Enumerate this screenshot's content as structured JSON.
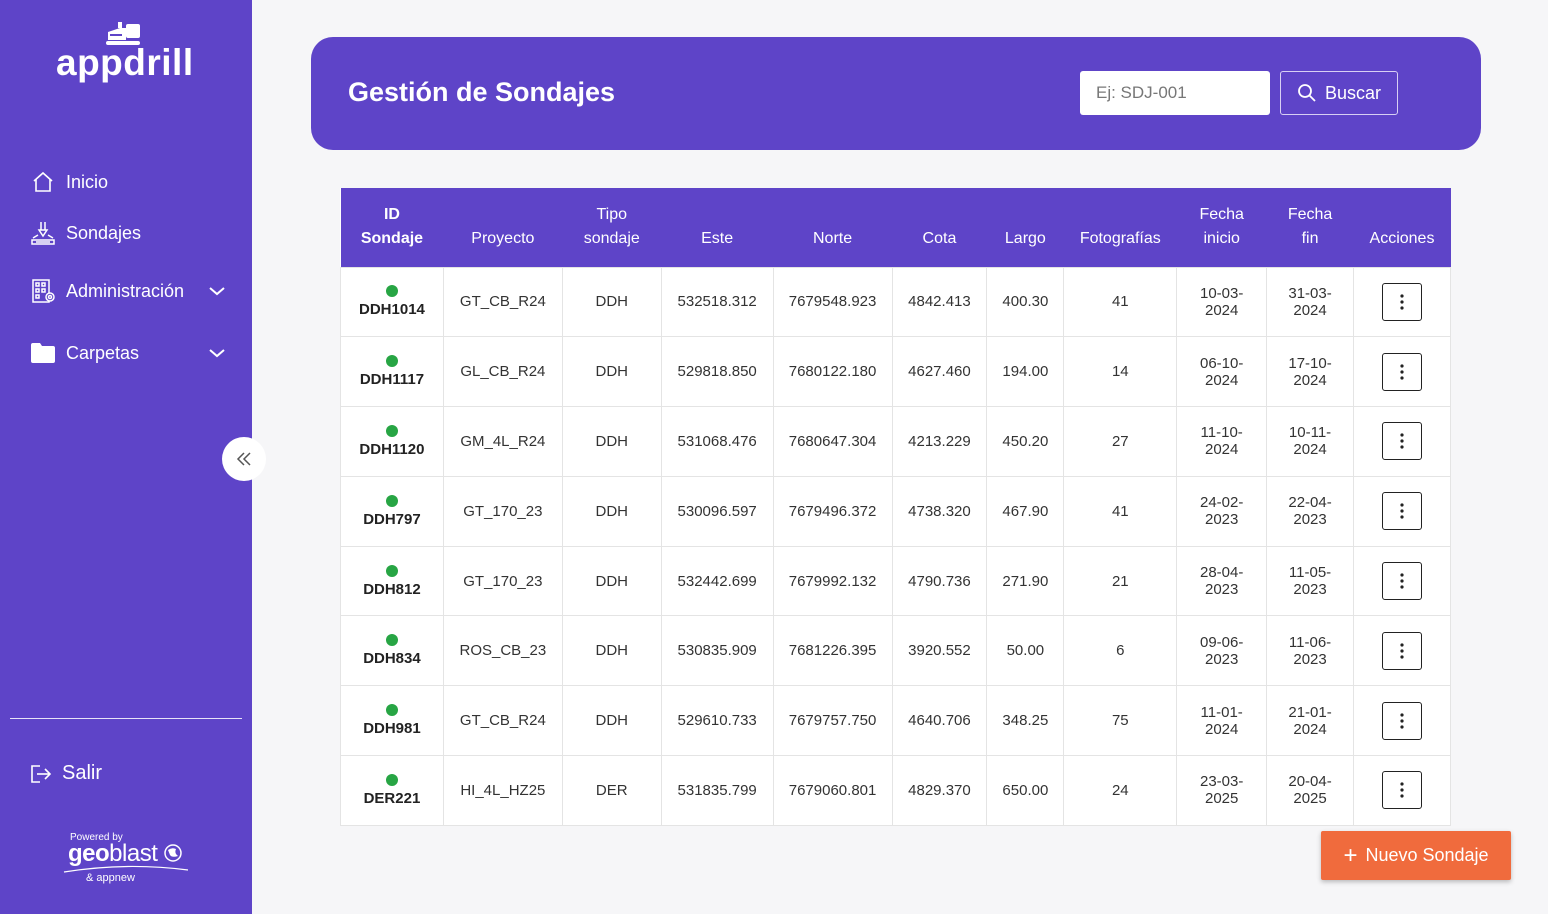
{
  "app": {
    "logo_text": "appdrill"
  },
  "sidebar": {
    "items": [
      {
        "label": "Inicio",
        "icon": "home-icon"
      },
      {
        "label": "Sondajes",
        "icon": "drill-icon"
      },
      {
        "label": "Administración",
        "icon": "building-icon",
        "expandable": true
      },
      {
        "label": "Carpetas",
        "icon": "folder-icon",
        "expandable": true
      }
    ],
    "logout_label": "Salir",
    "powered_by": "Powered by",
    "powered_brand_bold": "geo",
    "powered_brand": "blast",
    "partner": "& appnew"
  },
  "header": {
    "title": "Gestión de Sondajes",
    "search_placeholder": "Ej: SDJ-001",
    "search_label": "Buscar"
  },
  "table": {
    "columns": [
      {
        "line1": "ID",
        "line2": "Sondaje"
      },
      {
        "line1": "",
        "line2": "Proyecto"
      },
      {
        "line1": "Tipo",
        "line2": "sondaje"
      },
      {
        "line1": "",
        "line2": "Este"
      },
      {
        "line1": "",
        "line2": "Norte"
      },
      {
        "line1": "",
        "line2": "Cota"
      },
      {
        "line1": "",
        "line2": "Largo"
      },
      {
        "line1": "",
        "line2": "Fotografías"
      },
      {
        "line1": "Fecha",
        "line2": "inicio"
      },
      {
        "line1": "Fecha",
        "line2": "fin"
      },
      {
        "line1": "",
        "line2": "Acciones"
      }
    ],
    "rows": [
      {
        "id": "DDH1014",
        "proyecto": "GT_CB_R24",
        "tipo": "DDH",
        "este": "532518.312",
        "norte": "7679548.923",
        "cota": "4842.413",
        "largo": "400.30",
        "fotos": "41",
        "inicio_a": "10-03-",
        "inicio_b": "2024",
        "fin_a": "31-03-",
        "fin_b": "2024",
        "status_color": "#27a544"
      },
      {
        "id": "DDH1117",
        "proyecto": "GL_CB_R24",
        "tipo": "DDH",
        "este": "529818.850",
        "norte": "7680122.180",
        "cota": "4627.460",
        "largo": "194.00",
        "fotos": "14",
        "inicio_a": "06-10-",
        "inicio_b": "2024",
        "fin_a": "17-10-",
        "fin_b": "2024",
        "status_color": "#27a544"
      },
      {
        "id": "DDH1120",
        "proyecto": "GM_4L_R24",
        "tipo": "DDH",
        "este": "531068.476",
        "norte": "7680647.304",
        "cota": "4213.229",
        "largo": "450.20",
        "fotos": "27",
        "inicio_a": "11-10-",
        "inicio_b": "2024",
        "fin_a": "10-11-",
        "fin_b": "2024",
        "status_color": "#27a544"
      },
      {
        "id": "DDH797",
        "proyecto": "GT_170_23",
        "tipo": "DDH",
        "este": "530096.597",
        "norte": "7679496.372",
        "cota": "4738.320",
        "largo": "467.90",
        "fotos": "41",
        "inicio_a": "24-02-",
        "inicio_b": "2023",
        "fin_a": "22-04-",
        "fin_b": "2023",
        "status_color": "#27a544"
      },
      {
        "id": "DDH812",
        "proyecto": "GT_170_23",
        "tipo": "DDH",
        "este": "532442.699",
        "norte": "7679992.132",
        "cota": "4790.736",
        "largo": "271.90",
        "fotos": "21",
        "inicio_a": "28-04-",
        "inicio_b": "2023",
        "fin_a": "11-05-",
        "fin_b": "2023",
        "status_color": "#27a544"
      },
      {
        "id": "DDH834",
        "proyecto": "ROS_CB_23",
        "tipo": "DDH",
        "este": "530835.909",
        "norte": "7681226.395",
        "cota": "3920.552",
        "largo": "50.00",
        "fotos": "6",
        "inicio_a": "09-06-",
        "inicio_b": "2023",
        "fin_a": "11-06-",
        "fin_b": "2023",
        "status_color": "#27a544"
      },
      {
        "id": "DDH981",
        "proyecto": "GT_CB_R24",
        "tipo": "DDH",
        "este": "529610.733",
        "norte": "7679757.750",
        "cota": "4640.706",
        "largo": "348.25",
        "fotos": "75",
        "inicio_a": "11-01-",
        "inicio_b": "2024",
        "fin_a": "21-01-",
        "fin_b": "2024",
        "status_color": "#27a544"
      },
      {
        "id": "DER221",
        "proyecto": "HI_4L_HZ25",
        "tipo": "DER",
        "este": "531835.799",
        "norte": "7679060.801",
        "cota": "4829.370",
        "largo": "650.00",
        "fotos": "24",
        "inicio_a": "23-03-",
        "inicio_b": "2025",
        "fin_a": "20-04-",
        "fin_b": "2025",
        "status_color": "#27a544"
      }
    ]
  },
  "new_button": {
    "label": "Nuevo Sondaje"
  },
  "colors": {
    "primary": "#5e44c8",
    "accent": "#f06b3d",
    "status_ok": "#27a544"
  }
}
